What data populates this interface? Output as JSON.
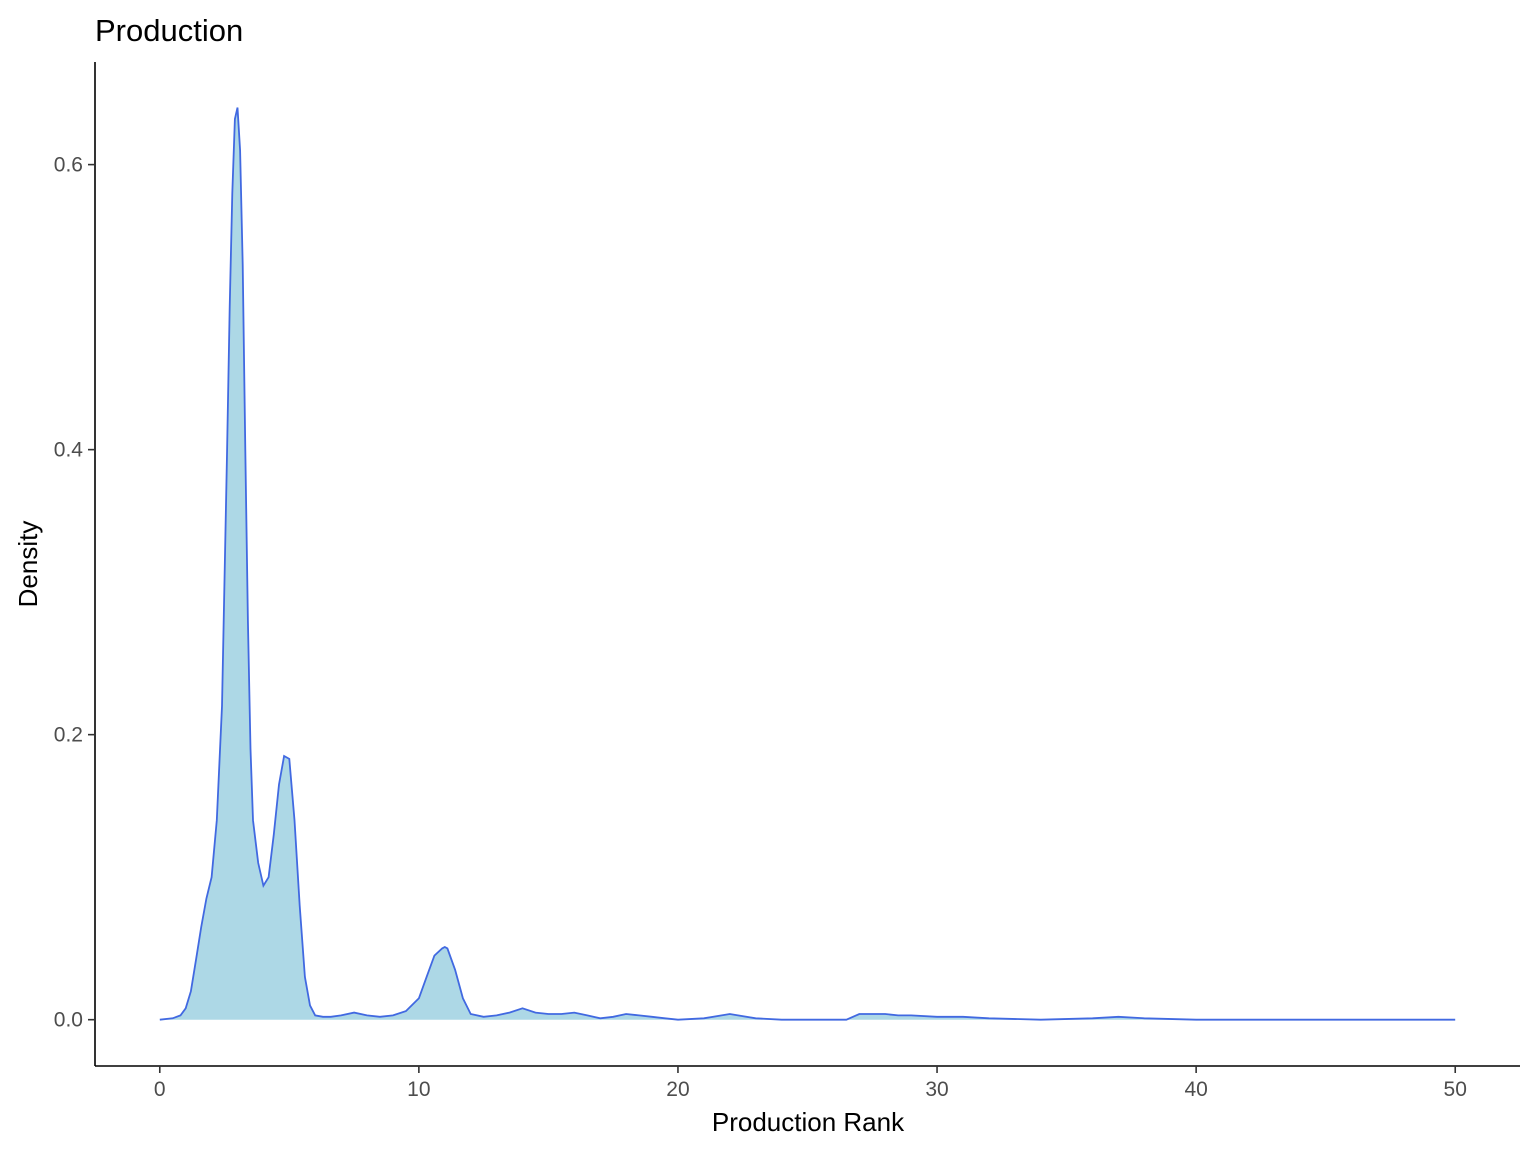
{
  "chart_data": {
    "type": "area",
    "title": "Production",
    "xlabel": "Production Rank",
    "ylabel": "Density",
    "xlim": [
      -2.5,
      52.5
    ],
    "ylim": [
      -0.0325,
      0.672
    ],
    "x_ticks": [
      0,
      10,
      20,
      30,
      40,
      50
    ],
    "x_tick_labels": [
      "0",
      "10",
      "20",
      "30",
      "40",
      "50"
    ],
    "y_ticks": [
      0.0,
      0.2,
      0.4,
      0.6
    ],
    "y_tick_labels": [
      "0.0",
      "0.2",
      "0.4",
      "0.6"
    ],
    "grid": false,
    "fill_color": "#add8e6",
    "line_color": "#4169e1",
    "series": [
      {
        "x": [
          0,
          0.5,
          0.8,
          1.0,
          1.2,
          1.4,
          1.6,
          1.8,
          2.0,
          2.2,
          2.4,
          2.6,
          2.7,
          2.8,
          2.9,
          3.0,
          3.1,
          3.2,
          3.3,
          3.4,
          3.5,
          3.6,
          3.8,
          4.0,
          4.2,
          4.4,
          4.6,
          4.8,
          5.0,
          5.2,
          5.4,
          5.6,
          5.8,
          6.0,
          6.3,
          6.6,
          7.0,
          7.5,
          8.0,
          8.5,
          9.0,
          9.5,
          10.0,
          10.3,
          10.6,
          10.9,
          11.0,
          11.1,
          11.4,
          11.7,
          12.0,
          12.5,
          13.0,
          13.5,
          14.0,
          14.5,
          15.0,
          15.5,
          16.0,
          16.5,
          17.0,
          17.5,
          18.0,
          18.5,
          19.0,
          19.5,
          20.0,
          21.0,
          22.0,
          23.0,
          24.0,
          25.0,
          26.0,
          26.5,
          27.0,
          27.5,
          28.0,
          28.5,
          29.0,
          30.0,
          31.0,
          32.0,
          34.0,
          36.0,
          37.0,
          38.0,
          40.0,
          45.0,
          50.0
        ],
        "y": [
          0.0,
          0.001,
          0.003,
          0.008,
          0.02,
          0.042,
          0.065,
          0.085,
          0.1,
          0.14,
          0.22,
          0.4,
          0.5,
          0.58,
          0.632,
          0.64,
          0.61,
          0.53,
          0.4,
          0.28,
          0.19,
          0.14,
          0.11,
          0.094,
          0.1,
          0.13,
          0.165,
          0.185,
          0.183,
          0.14,
          0.08,
          0.03,
          0.01,
          0.003,
          0.002,
          0.002,
          0.003,
          0.005,
          0.003,
          0.002,
          0.003,
          0.006,
          0.015,
          0.03,
          0.045,
          0.05,
          0.051,
          0.05,
          0.035,
          0.015,
          0.004,
          0.002,
          0.003,
          0.005,
          0.008,
          0.005,
          0.004,
          0.004,
          0.005,
          0.003,
          0.001,
          0.002,
          0.004,
          0.003,
          0.002,
          0.001,
          0.0,
          0.001,
          0.004,
          0.001,
          0.0,
          0.0,
          0.0,
          0.0,
          0.004,
          0.004,
          0.004,
          0.003,
          0.003,
          0.002,
          0.002,
          0.001,
          0.0,
          0.001,
          0.002,
          0.001,
          0.0,
          0.0,
          0.0
        ]
      }
    ]
  }
}
